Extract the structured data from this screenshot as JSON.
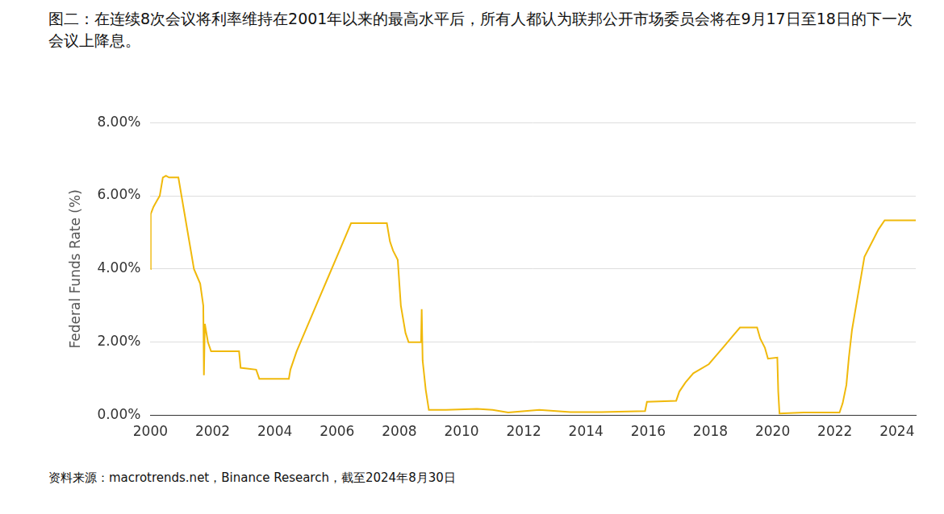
{
  "chart_data": {
    "type": "line",
    "title": "图二：在连续8次会议将利率维持在2001年以来的最高水平后，所有人都认为联邦公开市场委员会将在9月17日至18日的下一次会议上降息。",
    "y_label": "Federal Funds Rate (%)",
    "source": "资料来源：macrotrends.net，Binance Research，截至2024年8月30日",
    "color": "#f0b90b",
    "grid": true,
    "xlim": [
      2000,
      2024.6
    ],
    "xticks": [
      2000,
      2002,
      2004,
      2006,
      2008,
      2010,
      2012,
      2014,
      2016,
      2018,
      2020,
      2022,
      2024
    ],
    "ylim": [
      0,
      8
    ],
    "yticks": [
      {
        "value": 0,
        "label": "0.00%"
      },
      {
        "value": 2,
        "label": "2.00%"
      },
      {
        "value": 4,
        "label": "4.00%"
      },
      {
        "value": 6,
        "label": "6.00%"
      },
      {
        "value": 8,
        "label": "8.00%"
      }
    ],
    "x": [
      2000.0,
      2000.01,
      2000.1,
      2000.2,
      2000.3,
      2000.4,
      2000.5,
      2000.6,
      2000.7,
      2000.9,
      2001.0,
      2001.1,
      2001.2,
      2001.3,
      2001.4,
      2001.5,
      2001.6,
      2001.7,
      2001.72,
      2001.75,
      2001.85,
      2001.95,
      2002.5,
      2002.85,
      2002.9,
      2003.4,
      2003.5,
      2004.45,
      2004.5,
      2004.7,
      2004.95,
      2005.2,
      2005.45,
      2005.7,
      2005.95,
      2006.2,
      2006.45,
      2007.6,
      2007.7,
      2007.8,
      2007.95,
      2008.05,
      2008.2,
      2008.3,
      2008.7,
      2008.72,
      2008.75,
      2008.85,
      2008.95,
      2009.5,
      2010.5,
      2011.0,
      2011.5,
      2012.5,
      2013.5,
      2014.5,
      2015.9,
      2015.96,
      2016.9,
      2017.0,
      2017.2,
      2017.45,
      2017.95,
      2018.2,
      2018.45,
      2018.7,
      2018.95,
      2019.5,
      2019.6,
      2019.75,
      2019.85,
      2020.15,
      2020.18,
      2020.22,
      2021.0,
      2022.15,
      2022.25,
      2022.37,
      2022.45,
      2022.55,
      2022.7,
      2022.85,
      2022.95,
      2023.1,
      2023.25,
      2023.4,
      2023.6,
      2024.6
    ],
    "values": [
      4.0,
      5.5,
      5.7,
      5.85,
      6.0,
      6.5,
      6.55,
      6.5,
      6.5,
      6.5,
      6.0,
      5.5,
      5.0,
      4.5,
      4.0,
      3.8,
      3.6,
      3.0,
      1.1,
      2.5,
      2.0,
      1.75,
      1.75,
      1.75,
      1.3,
      1.25,
      1.0,
      1.0,
      1.25,
      1.75,
      2.25,
      2.75,
      3.25,
      3.75,
      4.25,
      4.75,
      5.25,
      5.25,
      4.75,
      4.5,
      4.25,
      3.0,
      2.25,
      2.0,
      2.0,
      2.9,
      1.5,
      0.7,
      0.15,
      0.15,
      0.18,
      0.15,
      0.08,
      0.15,
      0.09,
      0.09,
      0.12,
      0.37,
      0.4,
      0.65,
      0.9,
      1.15,
      1.4,
      1.65,
      1.9,
      2.15,
      2.4,
      2.4,
      2.1,
      1.85,
      1.55,
      1.58,
      0.65,
      0.05,
      0.08,
      0.08,
      0.33,
      0.83,
      1.58,
      2.33,
      3.08,
      3.83,
      4.33,
      4.58,
      4.83,
      5.08,
      5.33,
      5.33
    ]
  }
}
